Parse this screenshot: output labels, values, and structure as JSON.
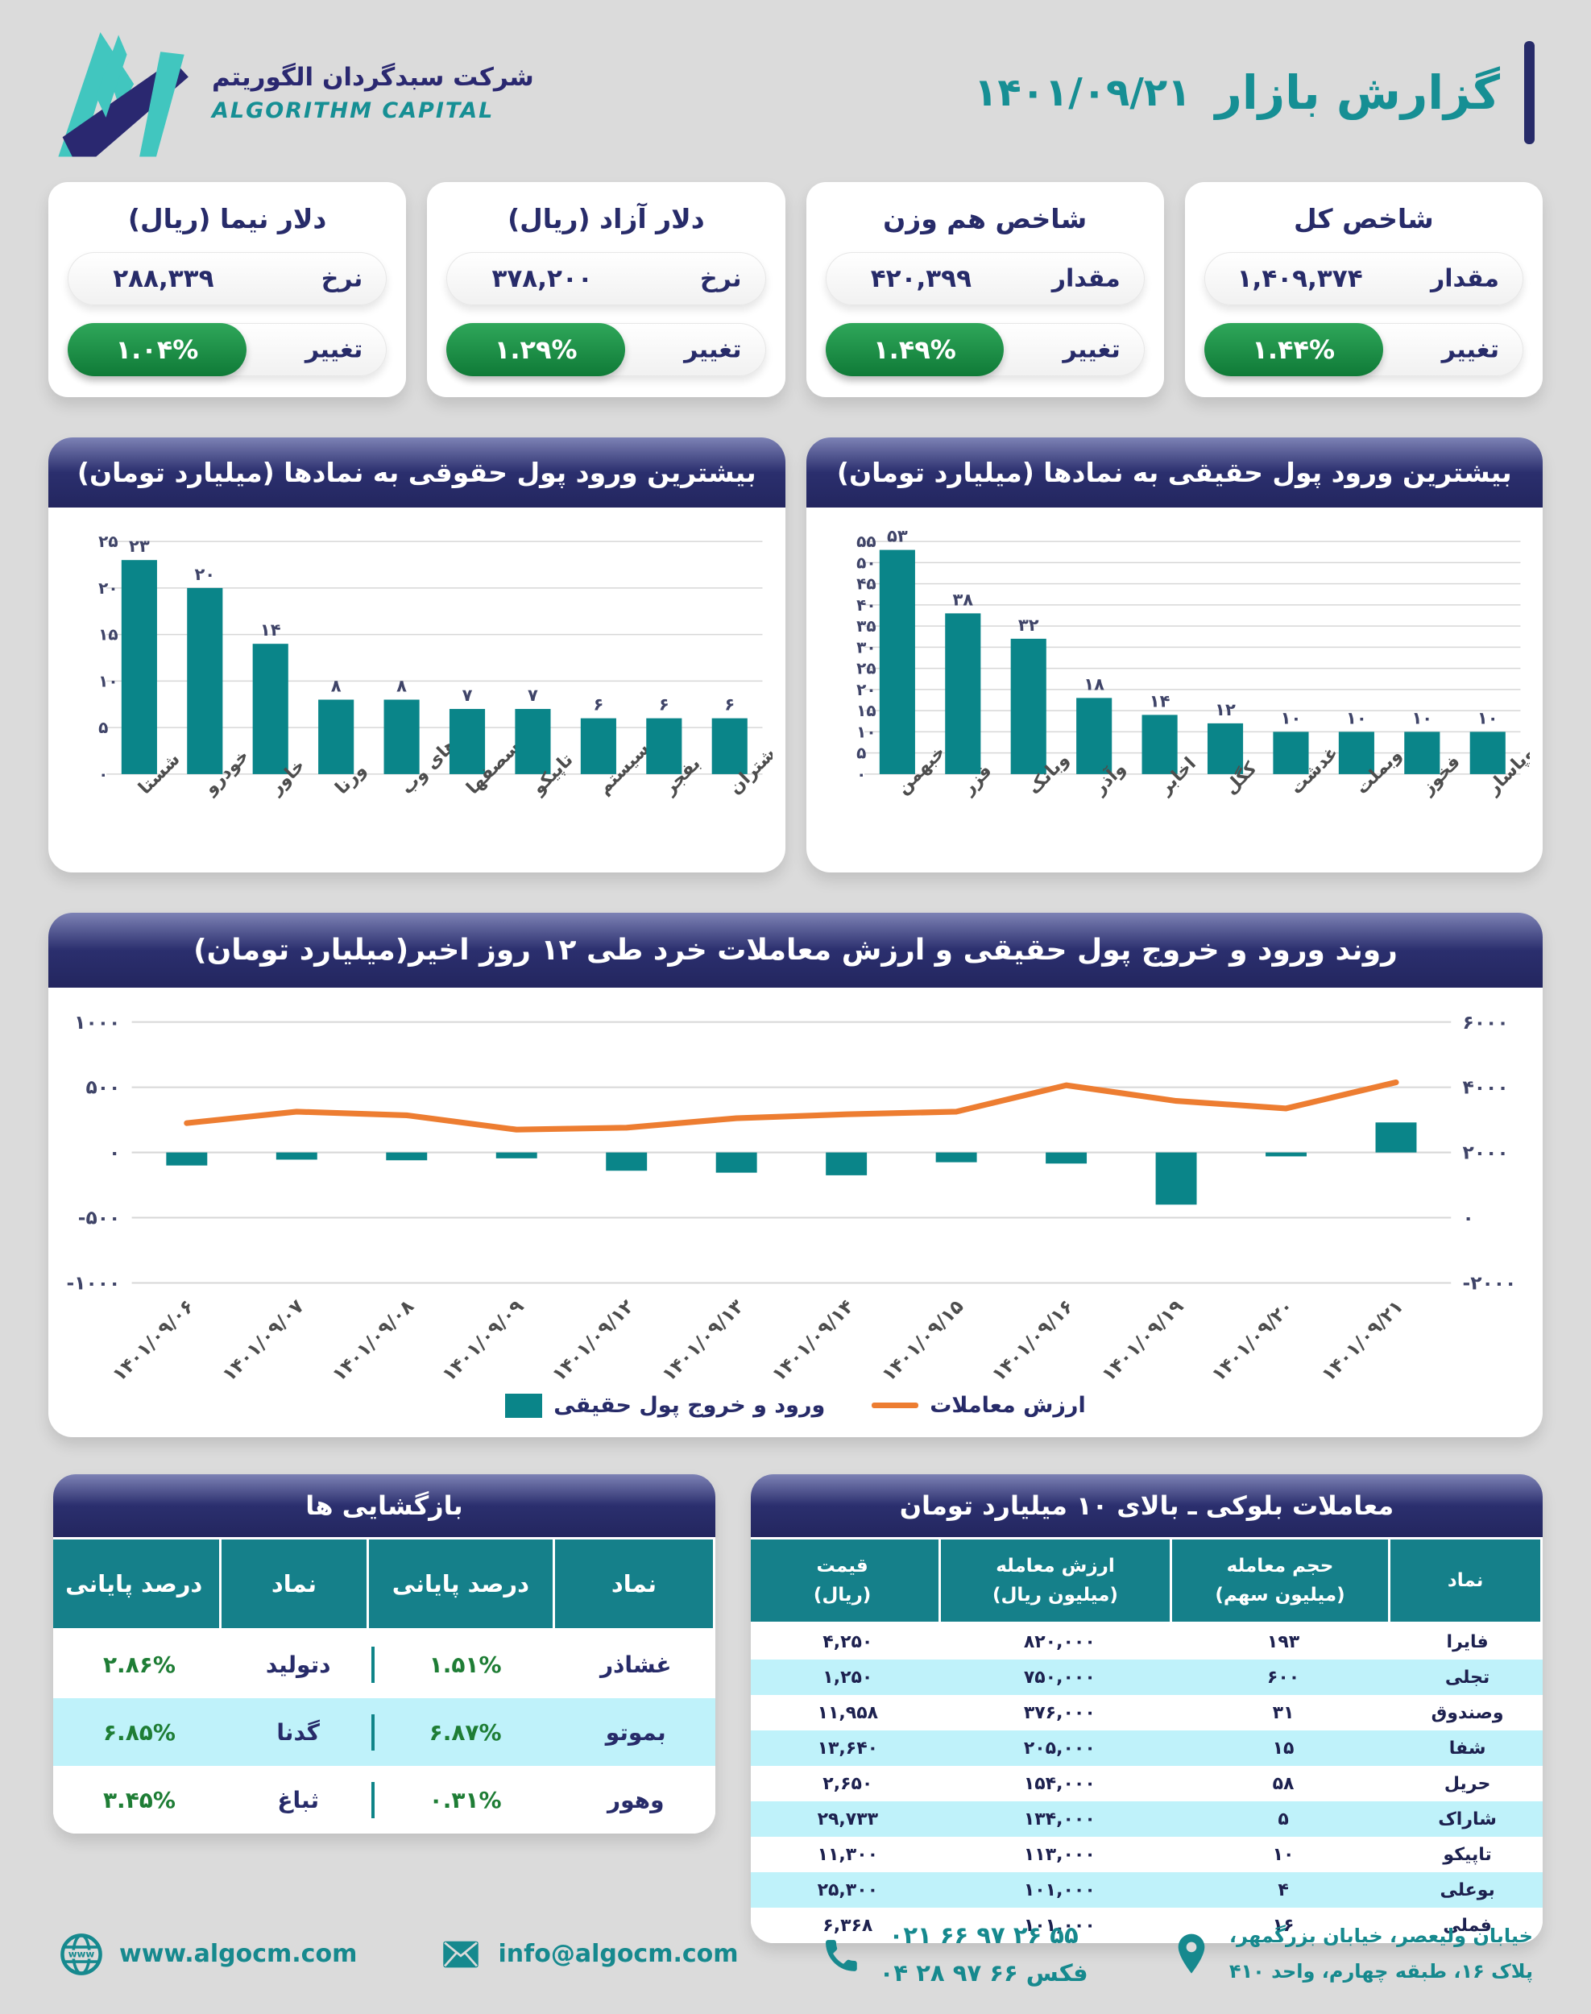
{
  "colors": {
    "background": "#DBDBDB",
    "navy": "#272B69",
    "brand_teal": "#168F94",
    "bar_teal": "#0A8589",
    "table_header_teal": "#15808A",
    "stripe_cyan": "#BFF2FA",
    "green_badge": "#1F8A44",
    "green_text": "#1E7D35",
    "orange_line": "#ED7D31"
  },
  "header": {
    "title": "گزارش بازار",
    "date": "۱۴۰۱/۰۹/۲۱",
    "company_name_fa": "شرکت سبدگردان الگوریتم",
    "company_name_en": "ALGORITHM CAPITAL"
  },
  "stat_cards": [
    {
      "title": "شاخص کل",
      "value_label": "مقدار",
      "value": "۱,۴۰۹,۳۷۴",
      "change_label": "تغییر",
      "change": "۱.۴۴%"
    },
    {
      "title": "شاخص هم وزن",
      "value_label": "مقدار",
      "value": "۴۲۰,۳۹۹",
      "change_label": "تغییر",
      "change": "۱.۴۹%"
    },
    {
      "title": "دلار آزاد (ریال)",
      "value_label": "نرخ",
      "value": "۳۷۸,۲۰۰",
      "change_label": "تغییر",
      "change": "۱.۲۹%"
    },
    {
      "title": "دلار نیما (ریال)",
      "value_label": "نرخ",
      "value": "۲۸۸,۳۳۹",
      "change_label": "تغییر",
      "change": "۱.۰۴%"
    }
  ],
  "chart_data": [
    {
      "id": "real-money-inflow",
      "type": "bar",
      "title": "بیشترین ورود پول حقیقی به نمادها (میلیارد تومان)",
      "categories": [
        "خبهمن",
        "فزر",
        "وبانک",
        "وآذر",
        "اخابر",
        "کگل",
        "غدشت",
        "وبملت",
        "فخوز",
        "وپاسار"
      ],
      "values": [
        53,
        38,
        32,
        18,
        14,
        12,
        10,
        10,
        10,
        10
      ],
      "xlabel": "",
      "ylabel": "",
      "ylim": [
        0,
        55
      ],
      "ytick_step": 5,
      "grid": true,
      "bar_color": "#0A8589"
    },
    {
      "id": "legal-money-inflow",
      "type": "bar",
      "title": "بیشترین ورود پول حقوقی به نمادها (میلیارد تومان)",
      "categories": [
        "شستا",
        "خودرو",
        "خاور",
        "ورنا",
        "های وب",
        "سصفها",
        "تاپیکو",
        "سیستم",
        "بفجر",
        "شتران"
      ],
      "values": [
        23,
        20,
        14,
        8,
        8,
        7,
        7,
        6,
        6,
        6
      ],
      "xlabel": "",
      "ylabel": "",
      "ylim": [
        0,
        25
      ],
      "ytick_step": 5,
      "grid": true,
      "bar_color": "#0A8589"
    },
    {
      "id": "flow-trend",
      "type": "combo",
      "title": "روند ورود و خروج پول حقیقی و ارزش معاملات خرد طی ۱۲ روز اخیر(میلیارد تومان)",
      "x": [
        "۱۴۰۱/۰۹/۰۶",
        "۱۴۰۱/۰۹/۰۷",
        "۱۴۰۱/۰۹/۰۸",
        "۱۴۰۱/۰۹/۰۹",
        "۱۴۰۱/۰۹/۱۲",
        "۱۴۰۱/۰۹/۱۳",
        "۱۴۰۱/۰۹/۱۴",
        "۱۴۰۱/۰۹/۱۵",
        "۱۴۰۱/۰۹/۱۶",
        "۱۴۰۱/۰۹/۱۹",
        "۱۴۰۱/۰۹/۲۰",
        "۱۴۰۱/۰۹/۲۱"
      ],
      "series": [
        {
          "name": "ورود و خروج پول حقیقی",
          "type": "bar",
          "axis": "left",
          "color": "#0A8589",
          "values": [
            -100,
            -55,
            -60,
            -45,
            -140,
            -155,
            -175,
            -75,
            -85,
            -400,
            -30,
            230
          ]
        },
        {
          "name": "ارزش معاملات",
          "type": "line",
          "axis": "right",
          "color": "#ED7D31",
          "values": [
            2900,
            3250,
            3140,
            2700,
            2760,
            3050,
            3170,
            3250,
            4060,
            3580,
            3350,
            4150
          ]
        }
      ],
      "left_ylim": [
        -1000,
        1000
      ],
      "left_ticks": [
        1000,
        500,
        0,
        -500,
        -1000
      ],
      "right_ylim": [
        -2000,
        6000
      ],
      "right_ticks": [
        6000,
        4000,
        2000,
        0,
        -2000
      ],
      "grid": true,
      "legend_position": "bottom"
    }
  ],
  "tables": {
    "reopenings": {
      "title": "بازگشایی ها",
      "headers": [
        "نماد",
        "درصد پایانی",
        "نماد",
        "درصد پایانی"
      ],
      "rows": [
        [
          "غشاذر",
          "۱.۵۱%",
          "دتولید",
          "۲.۸۶%"
        ],
        [
          "بموتو",
          "۶.۸۷%",
          "گدنا",
          "۶.۸۵%"
        ],
        [
          "وهور",
          "۰.۳۱%",
          "ثباغ",
          "۳.۴۵%"
        ]
      ]
    },
    "block_trades": {
      "title": "معاملات بلوکی ـ بالای ۱۰ میلیارد تومان",
      "headers": [
        {
          "label": "نماد",
          "unit": ""
        },
        {
          "label": "حجم معامله",
          "unit": "(میلیون سهم)"
        },
        {
          "label": "ارزش معامله",
          "unit": "(میلیون ریال)"
        },
        {
          "label": "قیمت",
          "unit": "(ریال)"
        }
      ],
      "rows": [
        [
          "فایرا",
          "۱۹۳",
          "۸۲۰,۰۰۰",
          "۴,۲۵۰"
        ],
        [
          "تجلی",
          "۶۰۰",
          "۷۵۰,۰۰۰",
          "۱,۲۵۰"
        ],
        [
          "وصندوق",
          "۳۱",
          "۳۷۶,۰۰۰",
          "۱۱,۹۵۸"
        ],
        [
          "شفا",
          "۱۵",
          "۲۰۵,۰۰۰",
          "۱۳,۶۴۰"
        ],
        [
          "حریل",
          "۵۸",
          "۱۵۴,۰۰۰",
          "۲,۶۵۰"
        ],
        [
          "شاراک",
          "۵",
          "۱۳۴,۰۰۰",
          "۲۹,۷۳۳"
        ],
        [
          "تاپیکو",
          "۱۰",
          "۱۱۳,۰۰۰",
          "۱۱,۳۰۰"
        ],
        [
          "بوعلی",
          "۴",
          "۱۰۱,۰۰۰",
          "۲۵,۳۰۰"
        ],
        [
          "فملی",
          "۱۶",
          "۱۰۱,۰۰۰",
          "۶,۳۶۸"
        ]
      ]
    }
  },
  "footer": {
    "website": "www.algocm.com",
    "email": "info@algocm.com",
    "phone": "۰۲۱ ۶۶ ۹۷ ۲۶ ۵۵",
    "fax": "فکس ۶۶ ۹۷ ۲۸ ۰۴",
    "address_line1": "خیابان ولیعصر، خیابان بزرگمهر،",
    "address_line2": "پلاک ۱۶، طبقه چهارم، واحد ۴۱۰"
  }
}
